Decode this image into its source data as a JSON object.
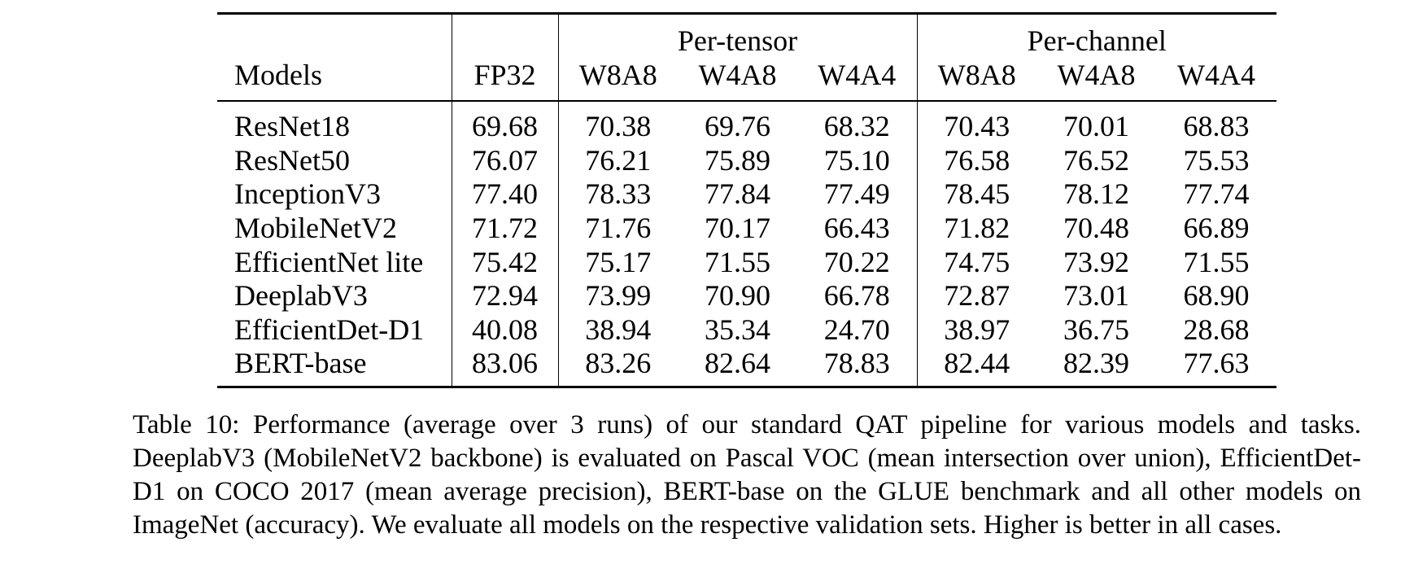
{
  "table": {
    "groups": [
      "Per-tensor",
      "Per-channel"
    ],
    "columns": [
      "Models",
      "FP32",
      "W8A8",
      "W4A8",
      "W4A4",
      "W8A8",
      "W4A8",
      "W4A4"
    ],
    "rows": [
      [
        "ResNet18",
        "69.68",
        "70.38",
        "69.76",
        "68.32",
        "70.43",
        "70.01",
        "68.83"
      ],
      [
        "ResNet50",
        "76.07",
        "76.21",
        "75.89",
        "75.10",
        "76.58",
        "76.52",
        "75.53"
      ],
      [
        "InceptionV3",
        "77.40",
        "78.33",
        "77.84",
        "77.49",
        "78.45",
        "78.12",
        "77.74"
      ],
      [
        "MobileNetV2",
        "71.72",
        "71.76",
        "70.17",
        "66.43",
        "71.82",
        "70.48",
        "66.89"
      ],
      [
        "EfficientNet lite",
        "75.42",
        "75.17",
        "71.55",
        "70.22",
        "74.75",
        "73.92",
        "71.55"
      ],
      [
        "DeeplabV3",
        "72.94",
        "73.99",
        "70.90",
        "66.78",
        "72.87",
        "73.01",
        "68.90"
      ],
      [
        "EfficientDet-D1",
        "40.08",
        "38.94",
        "35.34",
        "24.70",
        "38.97",
        "36.75",
        "28.68"
      ],
      [
        "BERT-base",
        "83.06",
        "83.26",
        "82.64",
        "78.83",
        "82.44",
        "82.39",
        "77.63"
      ]
    ]
  },
  "caption": {
    "label": "Table 10:",
    "text": "Performance (average over 3 runs) of our standard QAT pipeline for various models and tasks. DeeplabV3 (MobileNetV2 backbone) is evaluated on Pascal VOC (mean intersection over union), EfficientDet-D1 on COCO 2017 (mean average precision), BERT-base on the GLUE benchmark and all other models on ImageNet (accuracy). We evaluate all models on the respective validation sets. Higher is better in all cases."
  }
}
